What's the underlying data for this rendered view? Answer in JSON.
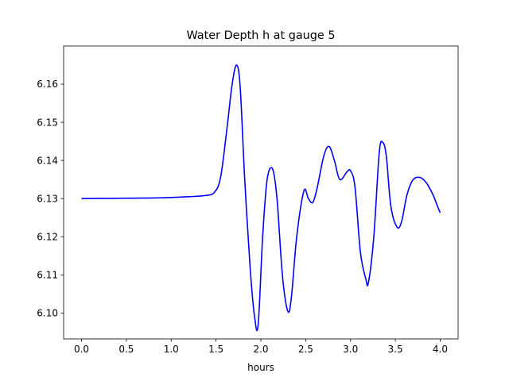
{
  "chart_data": {
    "type": "line",
    "title": "Water Depth h at gauge 5",
    "xlabel": "hours",
    "ylabel": "",
    "xlim": [
      -0.2,
      4.2
    ],
    "ylim": [
      6.0932,
      6.17
    ],
    "x_ticks": [
      0.0,
      0.5,
      1.0,
      1.5,
      2.0,
      2.5,
      3.0,
      3.5,
      4.0
    ],
    "x_tick_labels": [
      "0.0",
      "0.5",
      "1.0",
      "1.5",
      "2.0",
      "2.5",
      "3.0",
      "3.5",
      "4.0"
    ],
    "y_ticks": [
      6.1,
      6.11,
      6.12,
      6.13,
      6.14,
      6.15,
      6.16
    ],
    "y_tick_labels": [
      "6.10",
      "6.11",
      "6.12",
      "6.13",
      "6.14",
      "6.15",
      "6.16"
    ],
    "grid": false,
    "series": [
      {
        "color": "#0000ff",
        "x": [
          0.0,
          0.5,
          0.9,
          1.2,
          1.38,
          1.48,
          1.55,
          1.62,
          1.68,
          1.73,
          1.77,
          1.82,
          1.88,
          1.93,
          1.97,
          2.02,
          2.07,
          2.13,
          2.18,
          2.24,
          2.3,
          2.34,
          2.4,
          2.48,
          2.53,
          2.58,
          2.63,
          2.7,
          2.76,
          2.82,
          2.88,
          2.96,
          3.0,
          3.05,
          3.11,
          3.17,
          3.2,
          3.26,
          3.32,
          3.36,
          3.4,
          3.45,
          3.52,
          3.57,
          3.63,
          3.7,
          3.78,
          3.85,
          3.92,
          3.97,
          4.0
        ],
        "y": [
          6.13,
          6.1301,
          6.1302,
          6.1305,
          6.1308,
          6.1316,
          6.1355,
          6.148,
          6.16,
          6.165,
          6.159,
          6.135,
          6.112,
          6.099,
          6.097,
          6.12,
          6.135,
          6.1378,
          6.13,
          6.11,
          6.1005,
          6.104,
          6.12,
          6.132,
          6.13,
          6.129,
          6.133,
          6.141,
          6.1437,
          6.14,
          6.135,
          6.137,
          6.1373,
          6.133,
          6.116,
          6.109,
          6.108,
          6.12,
          6.142,
          6.1447,
          6.141,
          6.128,
          6.1225,
          6.124,
          6.131,
          6.135,
          6.1355,
          6.134,
          6.131,
          6.128,
          6.1263
        ]
      }
    ]
  }
}
